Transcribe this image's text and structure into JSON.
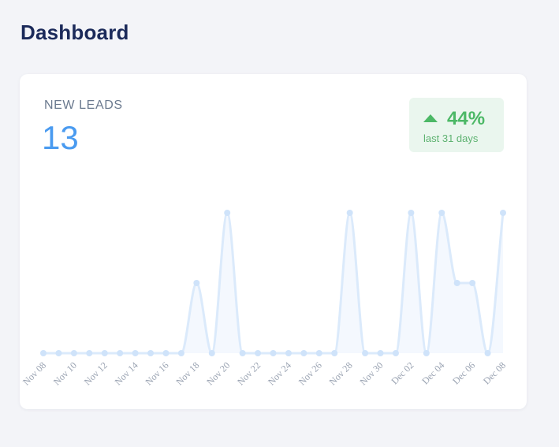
{
  "header": {
    "title": "Dashboard"
  },
  "card": {
    "label": "NEW LEADS",
    "value": "13",
    "trend": {
      "direction": "up",
      "icon": "arrow-up-icon",
      "percent": "44%",
      "period": "last 31 days",
      "color": "#4cb866",
      "background": "#eaf6ee"
    }
  },
  "chart_data": {
    "type": "area",
    "x": [
      "Nov 08",
      "Nov 09",
      "Nov 10",
      "Nov 11",
      "Nov 12",
      "Nov 13",
      "Nov 14",
      "Nov 15",
      "Nov 16",
      "Nov 17",
      "Nov 18",
      "Nov 19",
      "Nov 20",
      "Nov 21",
      "Nov 22",
      "Nov 23",
      "Nov 24",
      "Nov 25",
      "Nov 26",
      "Nov 27",
      "Nov 28",
      "Nov 29",
      "Nov 30",
      "Dec 01",
      "Dec 02",
      "Dec 03",
      "Dec 04",
      "Dec 05",
      "Dec 06",
      "Dec 07",
      "Dec 08"
    ],
    "tick_labels": [
      "Nov 08",
      "Nov 10",
      "Nov 12",
      "Nov 14",
      "Nov 16",
      "Nov 18",
      "Nov 20",
      "Nov 22",
      "Nov 24",
      "Nov 26",
      "Nov 28",
      "Nov 30",
      "Dec 02",
      "Dec 04",
      "Dec 06",
      "Dec 08"
    ],
    "series": [
      {
        "values": [
          0,
          0,
          0,
          0,
          0,
          0,
          0,
          0,
          0,
          0,
          1,
          0,
          2,
          0,
          0,
          0,
          0,
          0,
          0,
          0,
          2,
          0,
          0,
          0,
          2,
          0,
          2,
          1,
          1,
          0,
          2
        ]
      }
    ],
    "ylim": [
      0,
      2
    ],
    "grid": false,
    "legend": "none",
    "line_color": "#dbeafb",
    "fill_color": "#f4f8fe",
    "point_color": "#cfe3fa"
  }
}
